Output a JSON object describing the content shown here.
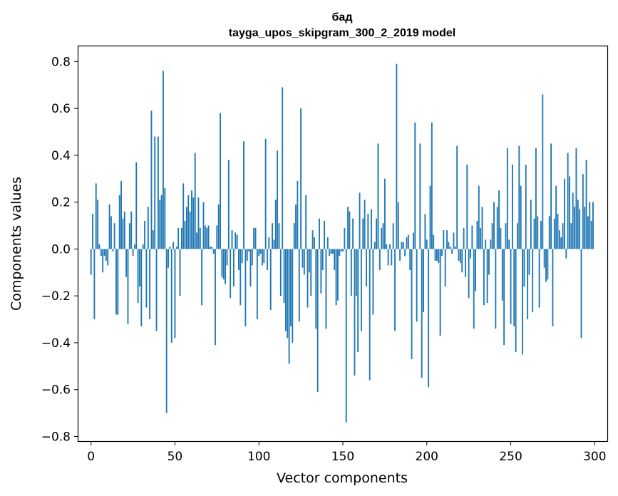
{
  "chart_data": {
    "type": "bar",
    "title_line1": "бад",
    "title_line2": "tayga_upos_skipgram_300_2_2019 model",
    "xlabel": "Vector components",
    "ylabel": "Components values",
    "xlim": [
      -7.5,
      307.5
    ],
    "ylim": [
      -0.82,
      0.865
    ],
    "xticks": [
      0,
      50,
      100,
      150,
      200,
      250,
      300
    ],
    "xtick_labels": [
      "0",
      "50",
      "100",
      "150",
      "200",
      "250",
      "300"
    ],
    "yticks": [
      -0.8,
      -0.6,
      -0.4,
      -0.2,
      0.0,
      0.2,
      0.4,
      0.6,
      0.8
    ],
    "ytick_labels": [
      "−0.8",
      "−0.6",
      "−0.4",
      "−0.2",
      "0.0",
      "0.2",
      "0.4",
      "0.6",
      "0.8"
    ],
    "bar_color": "#1f77b4",
    "values": [
      -0.11,
      0.15,
      -0.3,
      0.28,
      0.21,
      0.02,
      -0.03,
      -0.1,
      -0.03,
      -0.05,
      -0.07,
      0.19,
      0.14,
      -0.01,
      0.11,
      -0.28,
      -0.28,
      0.23,
      0.29,
      0.13,
      0.16,
      -0.12,
      -0.32,
      0.11,
      0.16,
      -0.03,
      0.02,
      0.37,
      -0.23,
      -0.16,
      -0.33,
      0.02,
      0.12,
      -0.25,
      0.18,
      -0.3,
      0.59,
      0.08,
      0.48,
      -0.35,
      0.48,
      0.21,
      0.23,
      0.76,
      0.26,
      -0.7,
      -0.08,
      0.01,
      -0.4,
      0.03,
      -0.38,
      0.01,
      0.09,
      -0.2,
      0.09,
      0.28,
      0.12,
      0.18,
      0.23,
      0.16,
      0.25,
      0.22,
      0.41,
      0.07,
      0.22,
      0.09,
      -0.24,
      0.2,
      0.1,
      0.09,
      0.1,
      0.01,
      0.01,
      -0.02,
      -0.41,
      0.1,
      0.19,
      0.58,
      -0.12,
      -0.13,
      -0.15,
      -0.07,
      0.38,
      -0.21,
      0.08,
      -0.16,
      0.07,
      0.06,
      -0.09,
      -0.24,
      -0.06,
      0.46,
      -0.33,
      -0.05,
      -0.01,
      -0.16,
      -0.07,
      0.09,
      0.09,
      -0.3,
      -0.03,
      -0.02,
      -0.07,
      -0.06,
      0.47,
      -0.09,
      0.05,
      -0.26,
      0.11,
      0.04,
      0.21,
      0.42,
      0.11,
      -0.2,
      0.69,
      -0.23,
      -0.35,
      -0.38,
      -0.49,
      -0.33,
      -0.4,
      0.11,
      0.19,
      0.29,
      -0.31,
      0.6,
      -0.08,
      -0.11,
      0.23,
      -0.25,
      -0.1,
      -0.2,
      0.08,
      0.05,
      -0.34,
      -0.61,
      0.13,
      -0.19,
      -0.09,
      0.12,
      -0.34,
      0.05,
      -0.03,
      -0.02,
      -0.02,
      -0.09,
      -0.24,
      -0.22,
      -0.03,
      -0.01,
      -0.01,
      0.09,
      -0.74,
      0.18,
      0.16,
      -0.2,
      0.13,
      -0.54,
      -0.2,
      -0.44,
      0.24,
      -0.35,
      0.13,
      0.21,
      -0.16,
      0.15,
      -0.56,
      0.17,
      -0.28,
      0.03,
      0.13,
      0.45,
      -0.09,
      0.09,
      0.11,
      0.3,
      0.02,
      -0.07,
      0.02,
      -0.07,
      0.11,
      -0.35,
      0.79,
      0.2,
      -0.05,
      0.03,
      0.03,
      -0.03,
      0.05,
      0.06,
      -0.09,
      -0.47,
      0.07,
      0.54,
      -0.31,
      0.0,
      0.45,
      -0.55,
      -0.27,
      0.15,
      0.04,
      -0.59,
      0.27,
      0.54,
      0.06,
      -0.05,
      -0.05,
      -0.06,
      -0.37,
      -0.03,
      0.08,
      -0.16,
      0.08,
      0.03,
      0.01,
      -0.02,
      0.07,
      0.01,
      0.44,
      -0.05,
      -0.06,
      -0.1,
      0.09,
      -0.12,
      0.36,
      -0.21,
      -0.04,
      0.1,
      -0.34,
      -0.18,
      0.12,
      0.27,
      0.09,
      0.18,
      -0.24,
      0.04,
      -0.23,
      -0.11,
      0.04,
      0.11,
      0.2,
      -0.34,
      0.18,
      0.25,
      0.09,
      -0.22,
      -0.41,
      0.11,
      0.43,
      0.04,
      -0.32,
      0.36,
      -0.33,
      -0.44,
      0.11,
      0.44,
      0.27,
      -0.45,
      -0.16,
      0.36,
      -0.3,
      -0.11,
      0.21,
      -0.27,
      0.13,
      0.43,
      0.14,
      -0.25,
      0.12,
      0.66,
      -0.08,
      -0.14,
      -0.13,
      0.14,
      0.45,
      -0.33,
      0.13,
      0.27,
      0.15,
      0.08,
      0.05,
      0.11,
      0.3,
      -0.04,
      0.41,
      0.31,
      0.11,
      0.24,
      0.18,
      0.43,
      0.21,
      0.17,
      -0.38,
      0.32,
      0.18,
      0.38,
      0.14,
      0.2,
      0.12,
      0.2
    ]
  }
}
